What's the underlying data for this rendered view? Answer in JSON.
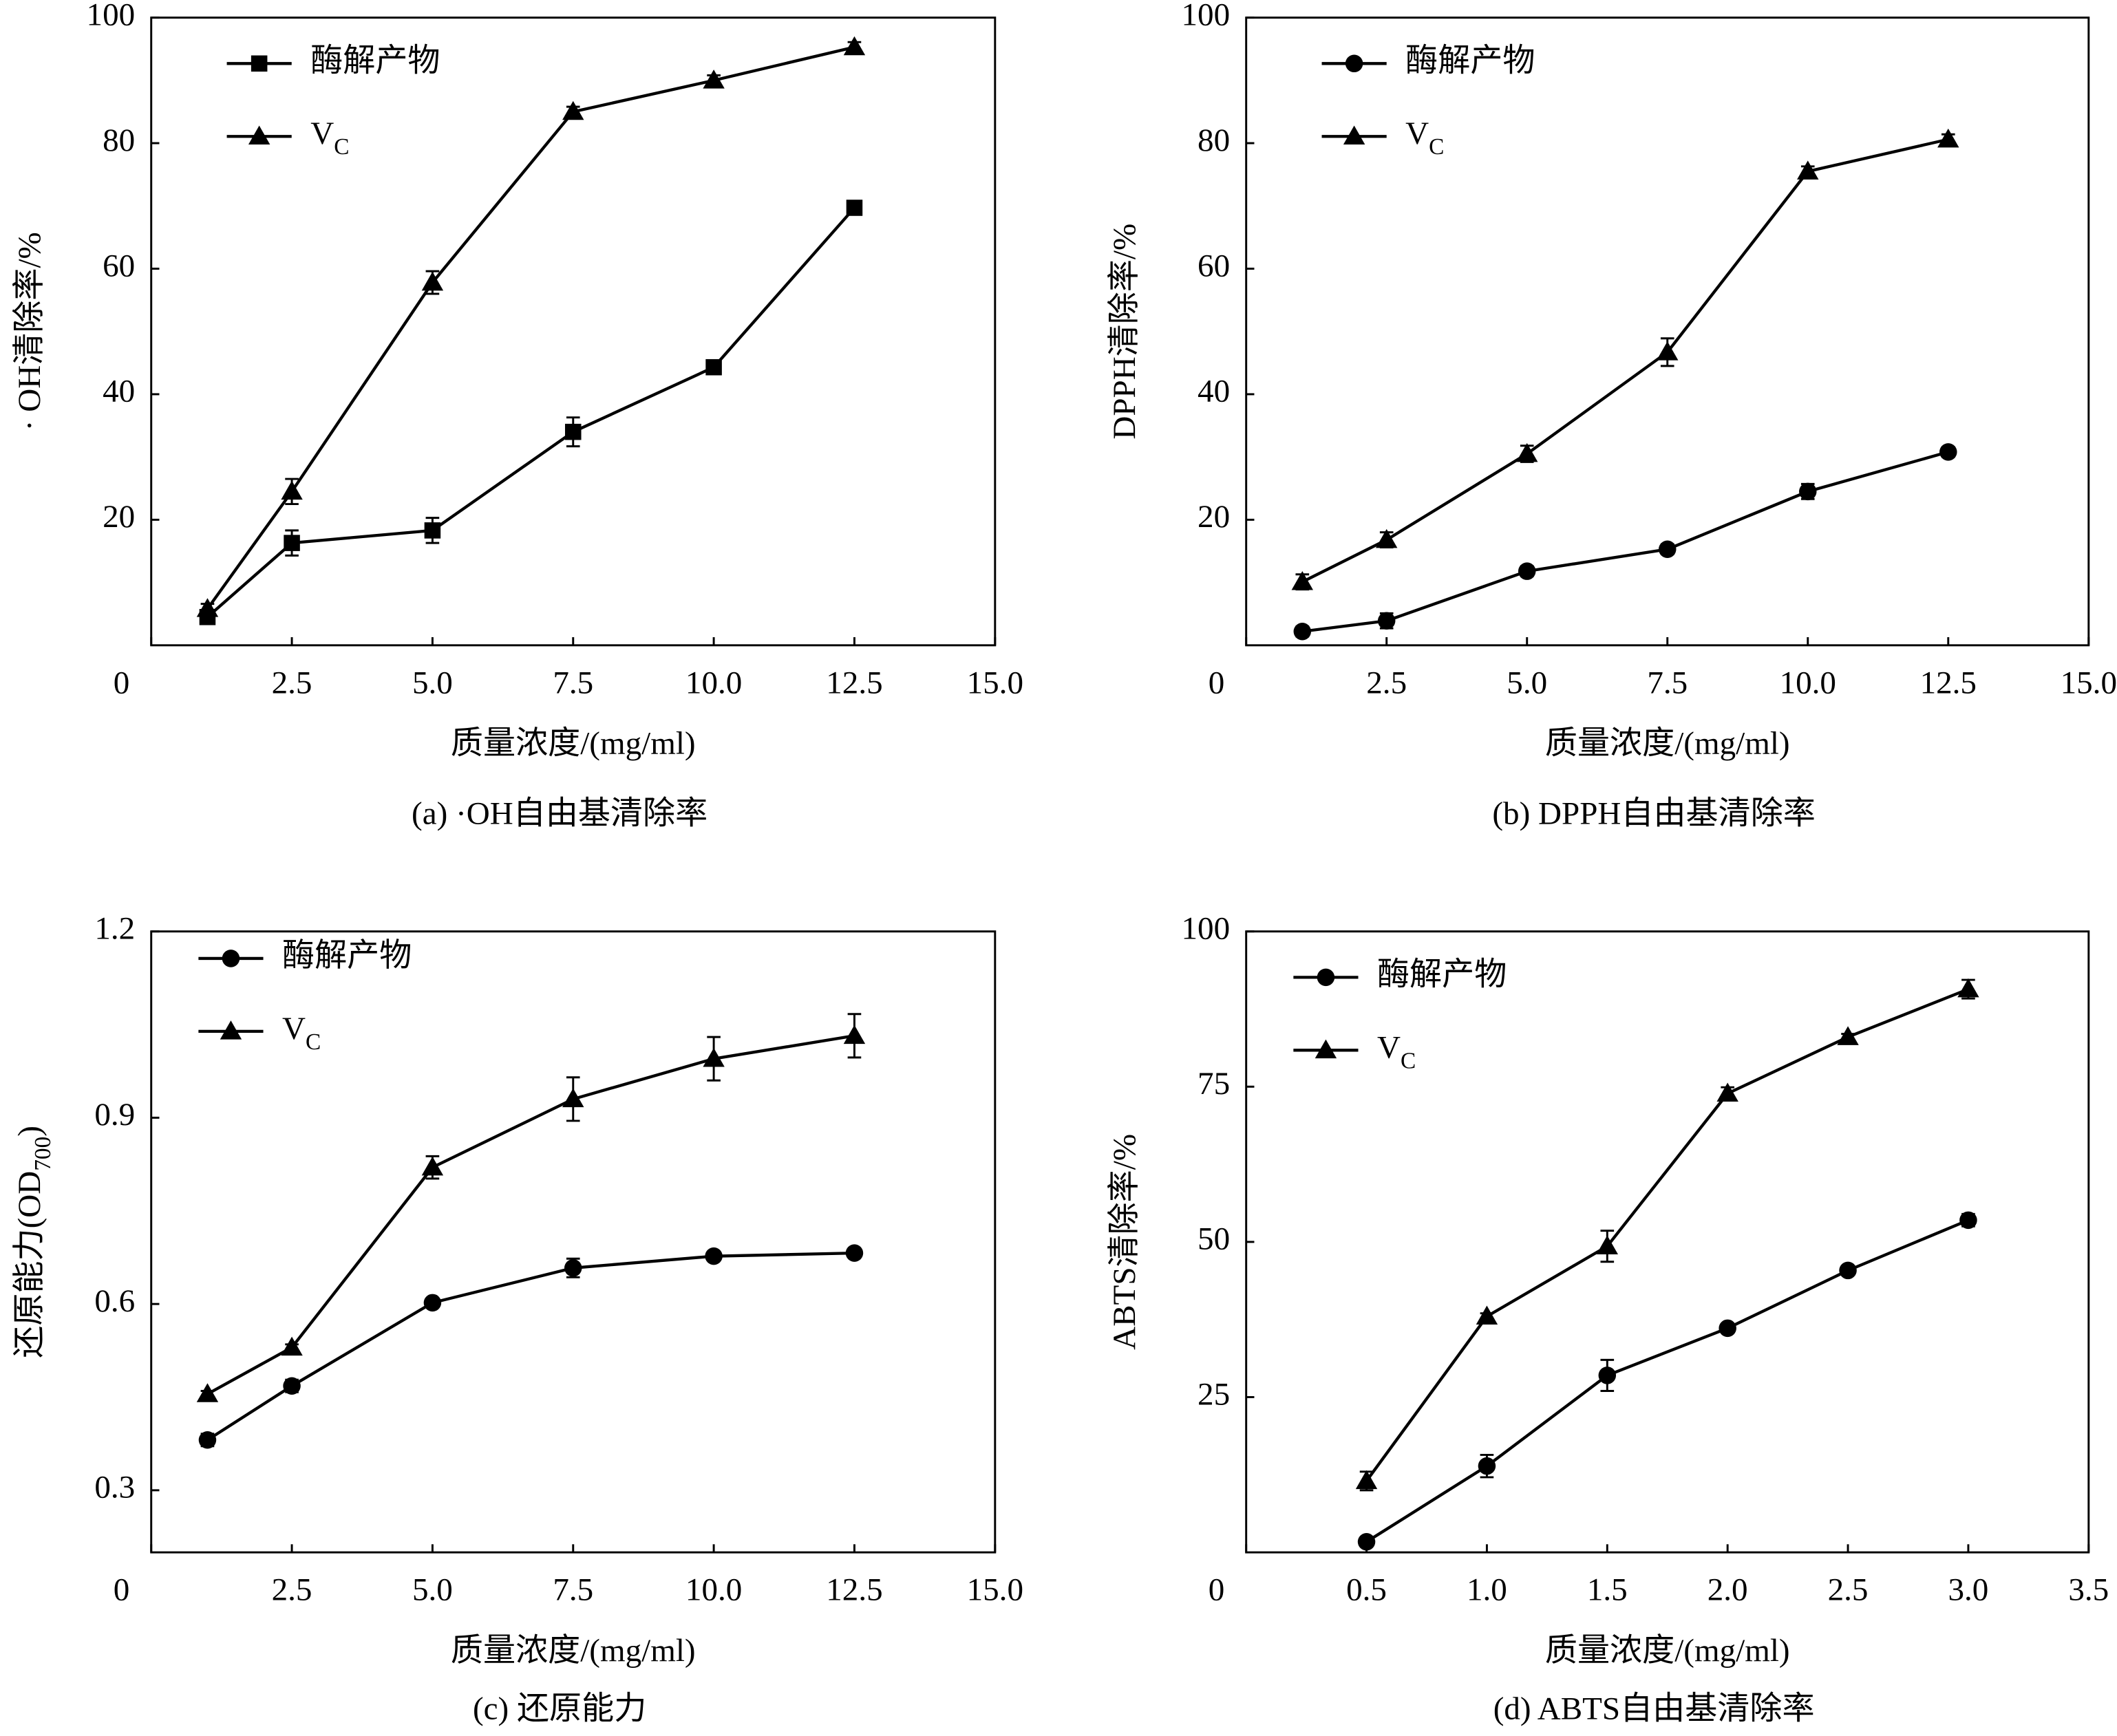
{
  "chart_data": [
    {
      "type": "line",
      "title": "(a) ·OH自由基清除率",
      "xlabel": "质量浓度/(mg/ml)",
      "ylabel": [
        "· OH清除率/%"
      ],
      "x": [
        1,
        2.5,
        5,
        7.5,
        10,
        12.5
      ],
      "xlim": [
        0,
        15
      ],
      "xticks": [
        0,
        2.5,
        {
          "value": 5,
          "label": "5.0"
        },
        7.5,
        {
          "value": 10,
          "label": "10.0"
        },
        12.5,
        {
          "value": 15,
          "label": "15.0"
        }
      ],
      "ylim": [
        0,
        100
      ],
      "yticks": [
        20,
        40,
        60,
        80,
        100
      ],
      "series": [
        {
          "name": [
            "酶解产物"
          ],
          "color": "#000000",
          "marker": "square",
          "values": [
            4.5,
            16.3,
            18.3,
            34,
            44.3,
            69.7
          ],
          "errors": [
            0.8,
            2,
            2,
            2.3,
            0.8,
            0.8
          ]
        },
        {
          "name": [
            "V",
            "C"
          ],
          "color": "#000000",
          "marker": "triangle",
          "values": [
            5.8,
            24.5,
            57.8,
            85,
            90,
            95.3
          ],
          "errors": [
            0.8,
            2,
            1.8,
            0.8,
            0.8,
            0.8
          ]
        }
      ]
    },
    {
      "type": "line",
      "title": "(b) DPPH自由基清除率",
      "xlabel": "质量浓度/(mg/ml)",
      "ylabel": [
        "DPPH清除率/%"
      ],
      "x": [
        1,
        2.5,
        5,
        7.5,
        10,
        12.5
      ],
      "xlim": [
        0,
        15
      ],
      "xticks": [
        0,
        2.5,
        {
          "value": 5,
          "label": "5.0"
        },
        7.5,
        {
          "value": 10,
          "label": "10.0"
        },
        12.5,
        {
          "value": 15,
          "label": "15.0"
        }
      ],
      "ylim": [
        0,
        100
      ],
      "yticks": [
        20,
        40,
        60,
        80,
        100
      ],
      "series": [
        {
          "name": [
            "酶解产物"
          ],
          "color": "#000000",
          "marker": "circle",
          "values": [
            2.2,
            3.9,
            11.8,
            15.3,
            24.5,
            30.8
          ],
          "errors": [
            0.8,
            1.2,
            0.8,
            0.8,
            1.2,
            0.8
          ]
        },
        {
          "name": [
            "V",
            "C"
          ],
          "color": "#000000",
          "marker": "triangle",
          "values": [
            10.1,
            16.8,
            30.5,
            46.7,
            75.5,
            80.6
          ],
          "errors": [
            1.2,
            1.2,
            1.3,
            2.2,
            0.8,
            0.8
          ]
        }
      ]
    },
    {
      "type": "line",
      "title": "(c)  还原能力",
      "xlabel": "质量浓度/(mg/ml)",
      "ylabel": [
        "还原能力(OD",
        "700",
        ")"
      ],
      "x": [
        1,
        2.5,
        5,
        7.5,
        10,
        12.5
      ],
      "xlim": [
        0,
        15
      ],
      "xticks": [
        0,
        2.5,
        {
          "value": 5,
          "label": "5.0"
        },
        7.5,
        {
          "value": 10,
          "label": "10.0"
        },
        12.5,
        {
          "value": 15,
          "label": "15.0"
        }
      ],
      "ylim": [
        0.2,
        1.2
      ],
      "yticks": [
        0.3,
        0.6,
        0.9,
        1.2
      ],
      "series": [
        {
          "name": [
            "酶解产物"
          ],
          "color": "#000000",
          "marker": "circle",
          "values": [
            0.381,
            0.468,
            0.602,
            0.658,
            0.677,
            0.682
          ],
          "errors": [
            0.01,
            0.01,
            0.005,
            0.015,
            0.005,
            0.005
          ]
        },
        {
          "name": [
            "V",
            "C"
          ],
          "color": "#000000",
          "marker": "triangle",
          "values": [
            0.455,
            0.53,
            0.82,
            0.93,
            0.995,
            1.032
          ],
          "errors": [
            0.005,
            0.005,
            0.018,
            0.035,
            0.035,
            0.035
          ]
        }
      ]
    },
    {
      "type": "line",
      "title": "(d) ABTS自由基清除率",
      "xlabel": "质量浓度/(mg/ml)",
      "ylabel": [
        "ABTS清除率/%"
      ],
      "x": [
        0.5,
        1,
        1.5,
        2,
        2.5,
        3
      ],
      "xlim": [
        0,
        3.5
      ],
      "xticks": [
        0,
        0.5,
        {
          "value": 1,
          "label": "1.0"
        },
        1.5,
        {
          "value": 2,
          "label": "2.0"
        },
        2.5,
        {
          "value": 3,
          "label": "3.0"
        },
        3.5
      ],
      "ylim": [
        0,
        100
      ],
      "yticks": [
        25,
        50,
        75,
        100
      ],
      "series": [
        {
          "name": [
            "酶解产物"
          ],
          "color": "#000000",
          "marker": "circle",
          "values": [
            1.7,
            13.9,
            28.5,
            36.1,
            45.4,
            53.5
          ],
          "errors": [
            0.5,
            1.8,
            2.5,
            0.5,
            0.5,
            1
          ]
        },
        {
          "name": [
            "V",
            "C"
          ],
          "color": "#000000",
          "marker": "triangle",
          "values": [
            11.5,
            38,
            49.3,
            73.9,
            83,
            90.7
          ],
          "errors": [
            1.5,
            0.5,
            2.5,
            1,
            0.5,
            1.5
          ]
        }
      ]
    }
  ]
}
